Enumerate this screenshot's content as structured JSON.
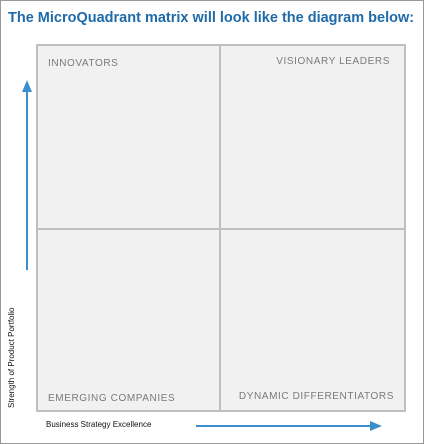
{
  "title": "The MicroQuadrant matrix will look like the diagram below:",
  "quadrants": {
    "top_left": "INNOVATORS",
    "top_right": "VISIONARY LEADERS",
    "bottom_left": "EMERGING COMPANIES",
    "bottom_right": "DYNAMIC DIFFERENTIATORS"
  },
  "axes": {
    "x_label": "Business Strategy Excellence",
    "y_label": "Strength of Product Portfolio"
  },
  "colors": {
    "title": "#1f6aa8",
    "arrow": "#3a8fcc",
    "grid_line": "#bfbfbf",
    "quadrant_fill": "#f1f1f1"
  }
}
